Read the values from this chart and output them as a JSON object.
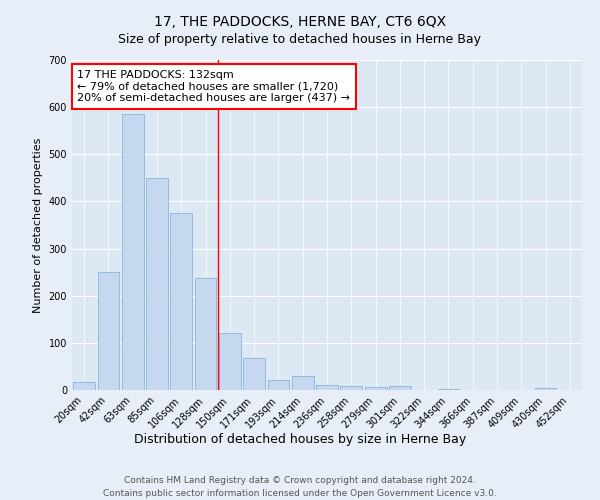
{
  "title": "17, THE PADDOCKS, HERNE BAY, CT6 6QX",
  "subtitle": "Size of property relative to detached houses in Herne Bay",
  "xlabel": "Distribution of detached houses by size in Herne Bay",
  "ylabel": "Number of detached properties",
  "bar_color": "#c5d8f0",
  "bar_edge_color": "#7badd4",
  "background_color": "#dde8f5",
  "grid_color": "#ffffff",
  "fig_background": "#e8eef8",
  "categories": [
    "20sqm",
    "42sqm",
    "63sqm",
    "85sqm",
    "106sqm",
    "128sqm",
    "150sqm",
    "171sqm",
    "193sqm",
    "214sqm",
    "236sqm",
    "258sqm",
    "279sqm",
    "301sqm",
    "322sqm",
    "344sqm",
    "366sqm",
    "387sqm",
    "409sqm",
    "430sqm",
    "452sqm"
  ],
  "values": [
    18,
    250,
    585,
    450,
    375,
    238,
    120,
    68,
    22,
    30,
    10,
    8,
    6,
    8,
    0,
    3,
    0,
    0,
    0,
    4,
    0
  ],
  "ylim": [
    0,
    700
  ],
  "yticks": [
    0,
    100,
    200,
    300,
    400,
    500,
    600,
    700
  ],
  "property_label": "17 THE PADDOCKS: 132sqm",
  "annotation_line1": "← 79% of detached houses are smaller (1,720)",
  "annotation_line2": "20% of semi-detached houses are larger (437) →",
  "vline_x_index": 5.5,
  "footer_line1": "Contains HM Land Registry data © Crown copyright and database right 2024.",
  "footer_line2": "Contains public sector information licensed under the Open Government Licence v3.0.",
  "title_fontsize": 10,
  "subtitle_fontsize": 9,
  "xlabel_fontsize": 9,
  "ylabel_fontsize": 8,
  "tick_fontsize": 7,
  "annotation_fontsize": 8,
  "footer_fontsize": 6.5
}
